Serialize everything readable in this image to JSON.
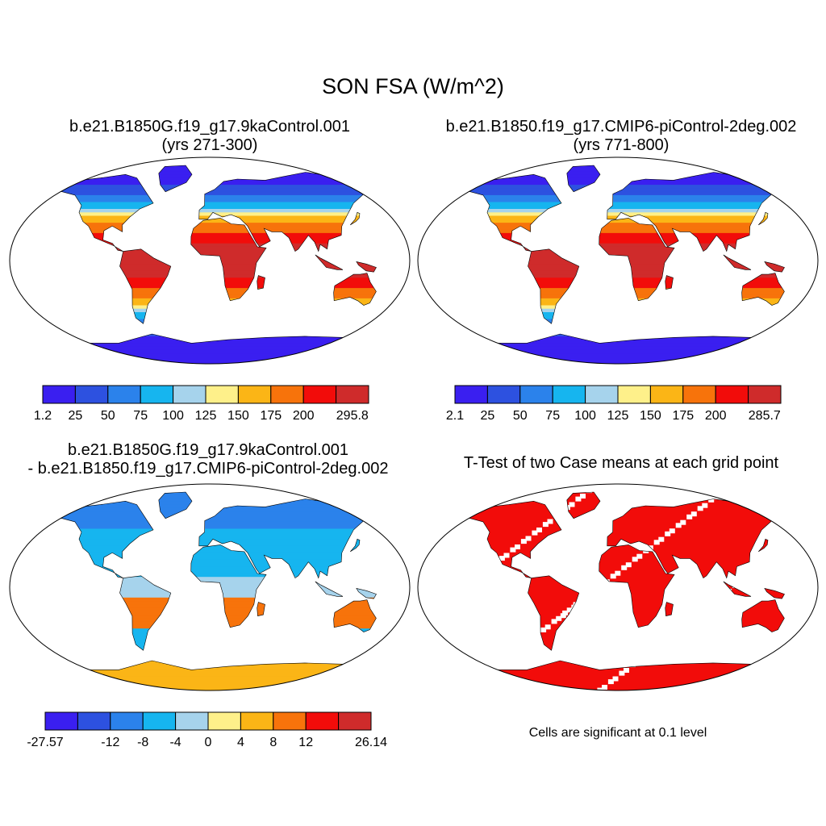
{
  "main_title": "SON FSA (W/m^2)",
  "panels": [
    {
      "title_line1": "b.e21.B1850G.f19_g17.9kaControl.001",
      "title_line2": "(yrs 271-300)",
      "colorbar": {
        "colors": [
          "#3a1ff0",
          "#2d51e0",
          "#2b82eb",
          "#16b5ef",
          "#a6d3ec",
          "#fef08a",
          "#fbb516",
          "#f7730b",
          "#f20c0a",
          "#cf2b2b"
        ],
        "labels": [
          "1.2",
          "25",
          "50",
          "75",
          "100",
          "125",
          "150",
          "175",
          "200",
          "295.8"
        ]
      }
    },
    {
      "title_line1": "b.e21.B1850.f19_g17.CMIP6-piControl-2deg.002",
      "title_line2": "(yrs 771-800)",
      "colorbar": {
        "colors": [
          "#3a1ff0",
          "#2d51e0",
          "#2b82eb",
          "#16b5ef",
          "#a6d3ec",
          "#fef08a",
          "#fbb516",
          "#f7730b",
          "#f20c0a",
          "#cf2b2b"
        ],
        "labels": [
          "2.1",
          "25",
          "50",
          "75",
          "100",
          "125",
          "150",
          "175",
          "200",
          "285.7"
        ]
      }
    },
    {
      "title_line1": "b.e21.B1850G.f19_g17.9kaControl.001",
      "title_line2": "- b.e21.B1850.f19_g17.CMIP6-piControl-2deg.002",
      "colorbar": {
        "colors": [
          "#3a1ff0",
          "#2d51e0",
          "#2b82eb",
          "#16b5ef",
          "#a6d3ec",
          "#fef08a",
          "#fbb516",
          "#f7730b",
          "#f20c0a",
          "#cf2b2b"
        ],
        "labels": [
          "-27.57",
          "-12",
          "-8",
          "-4",
          "0",
          "4",
          "8",
          "12",
          "26.14"
        ]
      }
    },
    {
      "title_line1": "T-Test of two Case means at each grid point",
      "note": "Cells are significant at 0.1 level"
    }
  ],
  "colors": {
    "significant": "#f20c0a",
    "outline": "#000000"
  }
}
